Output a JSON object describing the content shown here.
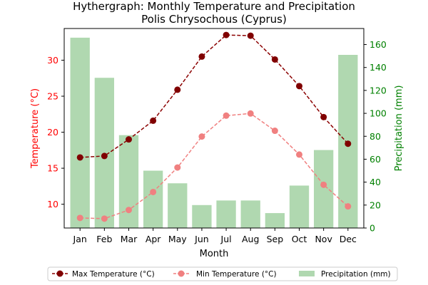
{
  "chart_data": {
    "type": "bar+line",
    "title": "Hythergraph: Monthly Temperature and Precipitation",
    "subtitle": "Polis Chrysochous (Cyprus)",
    "xlabel": "Month",
    "ylabel_left": "Temperature (°C)",
    "ylabel_right": "Precipitation (mm)",
    "categories": [
      "Jan",
      "Feb",
      "Mar",
      "Apr",
      "May",
      "Jun",
      "Jul",
      "Aug",
      "Sep",
      "Oct",
      "Nov",
      "Dec"
    ],
    "ylim_left": [
      6.7,
      34.4
    ],
    "ylim_right": [
      0,
      174
    ],
    "yticks_left": [
      10,
      15,
      20,
      25,
      30
    ],
    "yticks_right": [
      0,
      20,
      40,
      60,
      80,
      100,
      120,
      140,
      160
    ],
    "grid": false,
    "legend_position": "bottom-center",
    "series": [
      {
        "name": "Max Temperature (°C)",
        "axis": "left",
        "kind": "line",
        "style": "dashed",
        "color": "#8b0000",
        "marker_color": "#800000",
        "values": [
          16.5,
          16.7,
          19.0,
          21.6,
          25.9,
          30.5,
          33.5,
          33.4,
          30.1,
          26.4,
          22.1,
          18.4
        ]
      },
      {
        "name": "Min Temperature (°C)",
        "axis": "left",
        "kind": "line",
        "style": "dashed",
        "color": "#f08080",
        "marker_color": "#f08080",
        "values": [
          8.1,
          8.0,
          9.2,
          11.7,
          15.1,
          19.4,
          22.3,
          22.6,
          20.2,
          16.9,
          12.7,
          9.7
        ]
      },
      {
        "name": "Precipitation (mm)",
        "axis": "right",
        "kind": "bar",
        "color": "#b0d8b0",
        "values": [
          166,
          131,
          81,
          50,
          39,
          20,
          24,
          24,
          13,
          37,
          68,
          151
        ]
      }
    ],
    "colors": {
      "left_axis": "#ff0000",
      "right_axis": "#008000"
    }
  }
}
